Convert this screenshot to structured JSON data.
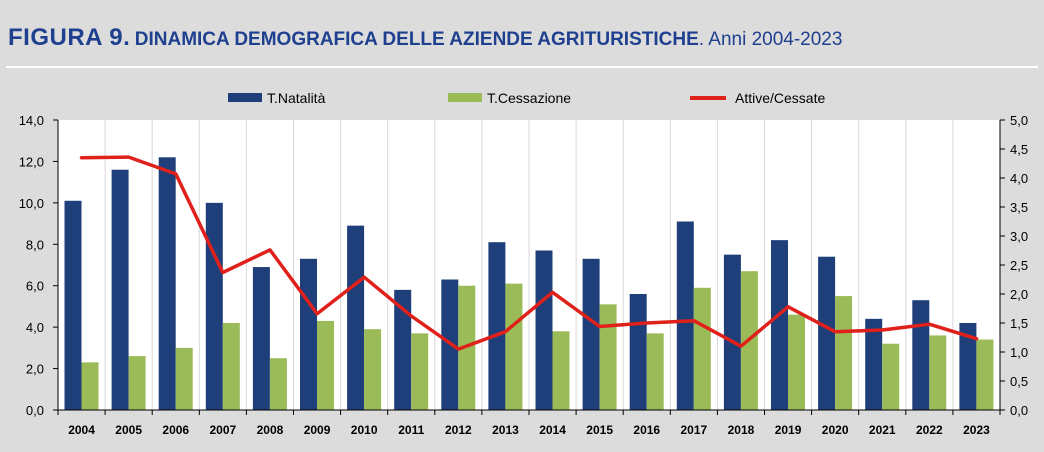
{
  "header": {
    "figure_label": "FIGURA 9.",
    "title": "DINAMICA DEMOGRAFICA DELLE AZIENDE AGRITURISTICHE",
    "subtitle": ". Anni 2004-2023"
  },
  "colors": {
    "natalita": "#1f3f7a",
    "cessazione": "#9bbb59",
    "ratio": "#e0201b",
    "title": "#1f3f8f"
  },
  "chart_data": {
    "type": "bar",
    "categories": [
      "2004",
      "2005",
      "2006",
      "2007",
      "2008",
      "2009",
      "2010",
      "2011",
      "2012",
      "2013",
      "2014",
      "2015",
      "2016",
      "2017",
      "2018",
      "2019",
      "2020",
      "2021",
      "2022",
      "2023"
    ],
    "series": [
      {
        "name": "T.Natalità",
        "type": "bar",
        "axis": "left",
        "values": [
          10.1,
          11.6,
          12.2,
          10.0,
          6.9,
          7.3,
          8.9,
          5.8,
          6.3,
          8.1,
          7.7,
          7.3,
          5.6,
          9.1,
          7.5,
          8.2,
          7.4,
          4.4,
          5.3,
          4.2
        ]
      },
      {
        "name": "T.Cessazione",
        "type": "bar",
        "axis": "left",
        "values": [
          2.3,
          2.6,
          3.0,
          4.2,
          2.5,
          4.3,
          3.9,
          3.7,
          6.0,
          6.1,
          3.8,
          5.1,
          3.7,
          5.9,
          6.7,
          4.6,
          5.5,
          3.2,
          3.6,
          3.4
        ]
      },
      {
        "name": "Attive/Cessate",
        "type": "line",
        "axis": "right",
        "values": [
          4.35,
          4.36,
          4.07,
          2.37,
          2.76,
          1.66,
          2.29,
          1.62,
          1.05,
          1.35,
          2.03,
          1.44,
          1.5,
          1.54,
          1.1,
          1.78,
          1.35,
          1.38,
          1.48,
          1.23
        ]
      }
    ],
    "left_axis": {
      "ylim": [
        0,
        14
      ],
      "ticks": [
        "0,0",
        "2,0",
        "4,0",
        "6,0",
        "8,0",
        "10,0",
        "12,0",
        "14,0"
      ]
    },
    "right_axis": {
      "ylim": [
        0,
        5
      ],
      "ticks": [
        "0,0",
        "0,5",
        "1,0",
        "1,5",
        "2,0",
        "2,5",
        "3,0",
        "3,5",
        "4,0",
        "4,5",
        "5,0"
      ]
    },
    "legend_position": "top-center",
    "grid": "vertical"
  }
}
